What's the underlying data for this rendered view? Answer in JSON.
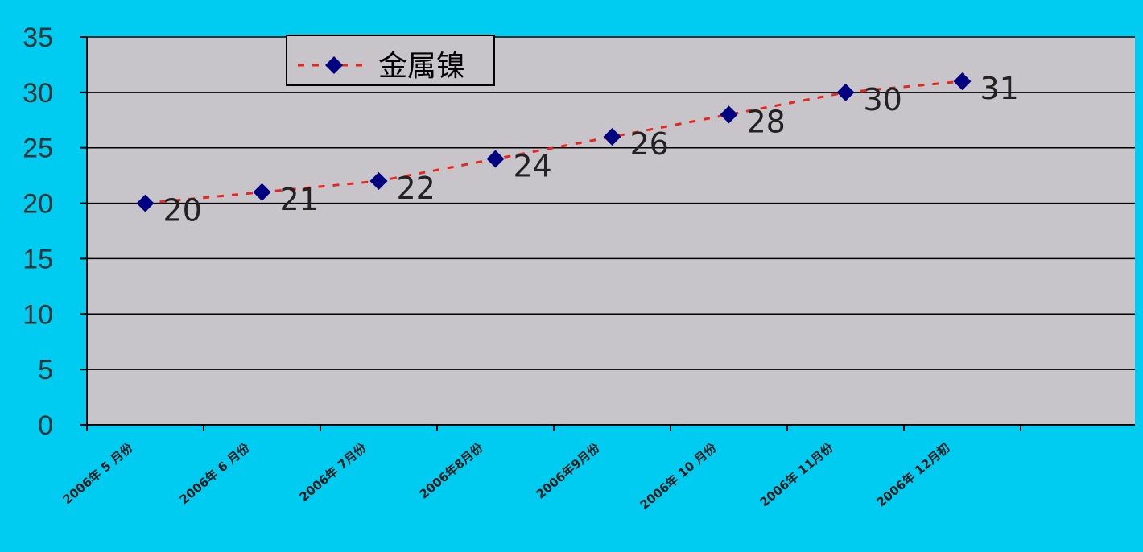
{
  "chart_data": {
    "type": "line",
    "title": "",
    "xlabel": "",
    "ylabel": "",
    "categories": [
      "2006年 5 月份",
      "2006年 6 月份",
      "2006年 7月份",
      "2006年8月份",
      "2006年9月份",
      "2006年 10 月份",
      "2006年 11月份",
      "2006年 12月初"
    ],
    "series": [
      {
        "name": "金属镍",
        "values": [
          20,
          21,
          22,
          24,
          26,
          28,
          30,
          31
        ],
        "line_color": "#e8261e",
        "line_style": "dashed",
        "marker": "diamond",
        "marker_color": "#000080",
        "data_labels": true
      }
    ],
    "ylim": [
      0,
      35
    ],
    "yticks": [
      0,
      5,
      10,
      15,
      20,
      25,
      30,
      35
    ],
    "grid": true,
    "legend_position": "top-left",
    "colors": {
      "background": "#00ccf2",
      "plot_area": "#c8c5ca",
      "gridline": "#000000"
    }
  }
}
